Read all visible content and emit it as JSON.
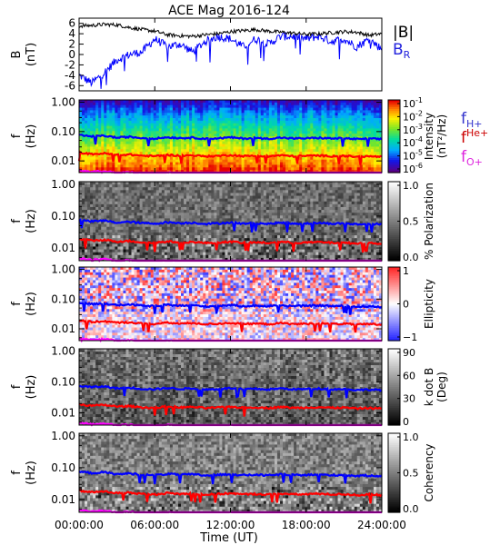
{
  "title": "ACE Mag 2016-124",
  "xaxis": {
    "label": "Time (UT)",
    "ticks": [
      "00:00:00",
      "06:00:00",
      "12:00:00",
      "18:00:00",
      "24:00:00"
    ],
    "hours": [
      0,
      6,
      12,
      18,
      24
    ]
  },
  "line_legend": {
    "b_total": {
      "text": "|B|",
      "color": "#000000"
    },
    "b_radial": {
      "text": "B",
      "sub": "R",
      "color": "#2222dd"
    }
  },
  "freq_legend": {
    "h": {
      "text": "f",
      "sub": "H+",
      "color": "#3333cc"
    },
    "he": {
      "text": "f",
      "sup": "He+",
      "color": "#cc0000"
    },
    "o": {
      "text": "f",
      "sub": "O+",
      "color": "#dd22dd"
    }
  },
  "colors": {
    "h_line": "#0000ff",
    "he_line": "#ff0000",
    "o_line": "#ff00ff",
    "bt_line": "#000000",
    "br_line": "#0000ff"
  },
  "panels": [
    {
      "id": "b-field",
      "ylabel": "B",
      "yunit": "(nT)",
      "ytick_labels": [
        "6",
        "4",
        "2",
        "0",
        "-2",
        "-4",
        "-6"
      ]
    },
    {
      "id": "intensity",
      "ylabel": "f",
      "yunit": "(Hz)",
      "ytick_labels": [
        "1.00",
        "0.10",
        "0.01"
      ],
      "cbar_title": "Intensity",
      "cbar_unit": "(nT²/Hz)",
      "cbar_ticks": [
        {
          "base": "10",
          "exp": "-1"
        },
        {
          "base": "10",
          "exp": "-2"
        },
        {
          "base": "10",
          "exp": "-3"
        },
        {
          "base": "10",
          "exp": "-4"
        },
        {
          "base": "10",
          "exp": "-5"
        },
        {
          "base": "10",
          "exp": "-6"
        }
      ],
      "colormap": "rainbow"
    },
    {
      "id": "polarization",
      "ylabel": "f",
      "yunit": "(Hz)",
      "ytick_labels": [
        "1.00",
        "0.10",
        "0.01"
      ],
      "cbar_title": "% Polarization",
      "cbar_ticks": [
        "1.0",
        "0.5",
        "0.0"
      ],
      "colormap": "gray"
    },
    {
      "id": "ellipticity",
      "ylabel": "f",
      "yunit": "(Hz)",
      "ytick_labels": [
        "1.00",
        "0.10",
        "0.01"
      ],
      "cbar_title": "Ellipticity",
      "cbar_ticks": [
        "1",
        "0",
        "−1"
      ],
      "colormap": "bwr"
    },
    {
      "id": "kdotb",
      "ylabel": "f",
      "yunit": "(Hz)",
      "ytick_labels": [
        "1.00",
        "0.10",
        "0.01"
      ],
      "cbar_title": "k dot B",
      "cbar_unit": "(Deg)",
      "cbar_ticks": [
        "90",
        "60",
        "30",
        "0"
      ],
      "colormap": "gray"
    },
    {
      "id": "coherency",
      "ylabel": "f",
      "yunit": "(Hz)",
      "ytick_labels": [
        "1.00",
        "0.10",
        "0.01"
      ],
      "cbar_title": "Coherency",
      "cbar_ticks": [
        "1.0",
        "0.5",
        "0.0"
      ],
      "colormap": "gray"
    }
  ],
  "chart_data": {
    "type": "line",
    "title": "ACE Mag 2016-124",
    "xlabel": "Time (UT)",
    "x_hours": [
      0,
      1,
      2,
      3,
      4,
      5,
      6,
      7,
      8,
      9,
      10,
      11,
      12,
      13,
      14,
      15,
      16,
      17,
      18,
      19,
      20,
      21,
      22,
      23,
      24
    ],
    "b_panel": {
      "ylabel": "B (nT)",
      "ylim": [
        -7,
        7
      ],
      "series": [
        {
          "name": "|B|",
          "values": [
            5.5,
            5.6,
            5.8,
            5.7,
            5.2,
            4.8,
            4.5,
            3.8,
            3.6,
            3.5,
            3.8,
            4.0,
            4.4,
            4.6,
            4.8,
            4.5,
            4.3,
            4.1,
            3.9,
            4.0,
            4.2,
            4.4,
            4.3,
            3.7,
            4.0
          ]
        },
        {
          "name": "B_R",
          "values": [
            -4.0,
            -5.5,
            -3.5,
            -1.0,
            0.0,
            0.5,
            3.0,
            1.5,
            2.0,
            0.5,
            2.5,
            3.5,
            3.0,
            1.5,
            3.0,
            2.0,
            3.5,
            3.5,
            3.0,
            3.5,
            2.5,
            3.0,
            1.5,
            3.0,
            1.0
          ]
        }
      ]
    },
    "spectral_panels": {
      "yscale": "log",
      "ylim_hz": [
        0.004,
        1.2
      ],
      "series": [
        {
          "name": "f_H+",
          "values": [
            0.075,
            0.068,
            0.072,
            0.062,
            0.066,
            0.06,
            0.058,
            0.064,
            0.06,
            0.062,
            0.057,
            0.059,
            0.063,
            0.058,
            0.06,
            0.057,
            0.062,
            0.058,
            0.059,
            0.061,
            0.058,
            0.059,
            0.055,
            0.057,
            0.055
          ]
        },
        {
          "name": "f_He+",
          "values": [
            0.019,
            0.017,
            0.018,
            0.016,
            0.0165,
            0.015,
            0.0145,
            0.016,
            0.015,
            0.0155,
            0.0143,
            0.0148,
            0.0158,
            0.0145,
            0.015,
            0.0143,
            0.0155,
            0.0145,
            0.0148,
            0.0153,
            0.0145,
            0.0148,
            0.0138,
            0.0143,
            0.0138
          ]
        },
        {
          "name": "f_O+",
          "values": [
            0.0047,
            0.0043,
            0.0045,
            0.0039,
            0.0041,
            0.0038,
            0.0036,
            0.004,
            0.0038,
            0.0039,
            0.0036,
            0.0037,
            0.0039,
            0.0036,
            0.0038,
            0.0036,
            0.0039,
            0.0036,
            0.0037,
            0.0038,
            0.0036,
            0.0037,
            0.0034,
            0.0036,
            0.0034
          ]
        }
      ]
    }
  }
}
